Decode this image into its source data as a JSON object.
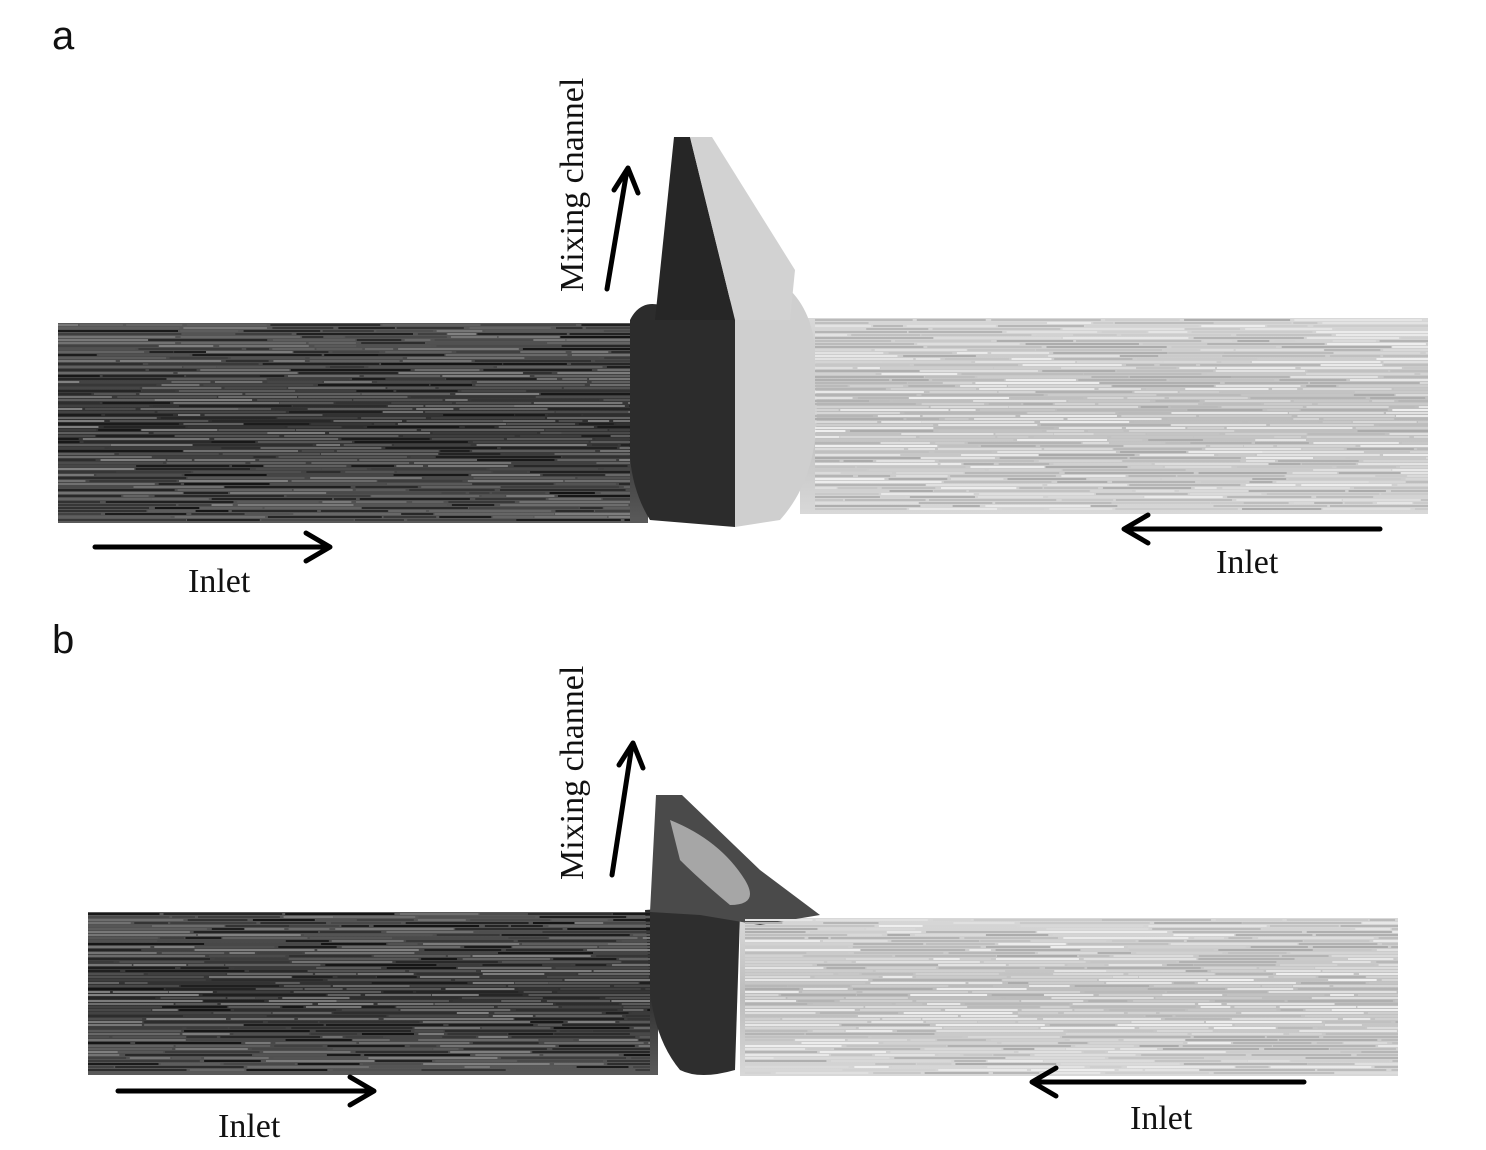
{
  "panels": [
    {
      "letter": "a",
      "mixing_label": "Mixing channel",
      "left_inlet_label": "Inlet",
      "right_inlet_label": "Inlet"
    },
    {
      "letter": "b",
      "mixing_label": "Mixing channel",
      "left_inlet_label": "Inlet",
      "right_inlet_label": "Inlet"
    }
  ],
  "colors": {
    "left_stream": "#3a3a3a",
    "right_stream": "#c4c4c4",
    "arrow": "#000000"
  }
}
